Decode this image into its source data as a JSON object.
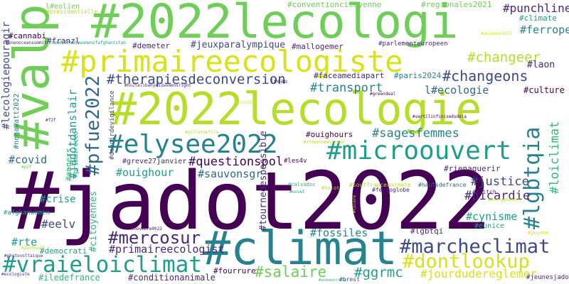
{
  "words": [
    {
      "text": "#2022lecologi",
      "color": "c8"
    },
    {
      "text": "#valp",
      "color": "c8"
    },
    {
      "text": "#primaireecologiste",
      "color": "c10"
    },
    {
      "text": "#2022lecologie",
      "color": "c9"
    },
    {
      "text": "#jadot2022",
      "color": "c1"
    },
    {
      "text": "#climat",
      "color": "c5"
    },
    {
      "text": "#elysee2022",
      "color": "c5"
    },
    {
      "text": "#microouvert",
      "color": "c6"
    },
    {
      "text": "#marcheclimat",
      "color": "c3"
    },
    {
      "text": "#vraieloiclimat",
      "color": "c6"
    },
    {
      "text": "#dontlookup",
      "color": "c10"
    },
    {
      "text": "#lgbtqia",
      "color": "c5"
    },
    {
      "text": "#pfue2022",
      "color": "c4"
    },
    {
      "text": "#mercosur",
      "color": "c2"
    },
    {
      "text": "#changeons",
      "color": "c3"
    },
    {
      "text": "#changeer",
      "color": "c9"
    },
    {
      "text": "#therapiesdeconversion",
      "color": "c3"
    },
    {
      "text": "#transport",
      "color": "c5"
    },
    {
      "text": "#sagesfemmes",
      "color": "c5"
    },
    {
      "text": "#questionspol",
      "color": "c1"
    },
    {
      "text": "#sauvonsgr",
      "color": "c4"
    },
    {
      "text": "#ouighour",
      "color": "c6"
    },
    {
      "text": "#picardie",
      "color": "c2"
    },
    {
      "text": "#justice",
      "color": "c3"
    },
    {
      "text": "#loiclimat",
      "color": "c7"
    },
    {
      "text": "#cynisme",
      "color": "c6"
    },
    {
      "text": "#fossiles",
      "color": "c5"
    },
    {
      "text": "#salaire",
      "color": "c8"
    },
    {
      "text": "#ggrmc",
      "color": "c6"
    },
    {
      "text": "#jourdudereglemer",
      "color": "c10"
    },
    {
      "text": "#primaireecologist",
      "color": "c2"
    },
    {
      "text": "#rte",
      "color": "c6"
    },
    {
      "text": "#eelv",
      "color": "c3"
    },
    {
      "text": "#covid",
      "color": "c4"
    },
    {
      "text": "#crise",
      "color": "c6"
    },
    {
      "text": "#laon",
      "color": "c2"
    },
    {
      "text": "#ferropem",
      "color": "c5"
    },
    {
      "text": "#punchline",
      "color": "c2"
    },
    {
      "text": "l#ecologie",
      "color": "c4"
    },
    {
      "text": "#culture",
      "color": "c1"
    },
    {
      "text": "#lecologiepouragir",
      "color": "c3"
    },
    {
      "text": "#jadotdanslair",
      "color": "c6"
    },
    {
      "text": "#tournedespossible",
      "color": "c2"
    },
    {
      "text": "#conditionanimale",
      "color": "c2"
    },
    {
      "text": "#iledefrance",
      "color": "c7"
    },
    {
      "text": "#democrati",
      "color": "c6"
    },
    {
      "text": "#fourrure",
      "color": "c1"
    },
    {
      "text": "#mallogemer",
      "color": "c2"
    },
    {
      "text": "#jeuxparalympique",
      "color": "c3"
    },
    {
      "text": "#faceamediapart",
      "color": "c2"
    },
    {
      "text": "#cannabi",
      "color": "c1"
    },
    {
      "text": "#franzl",
      "color": "c2"
    },
    {
      "text": "#conventioncitoyenne",
      "color": "c8"
    },
    {
      "text": "#regionales2021",
      "color": "c8"
    },
    {
      "text": "l#eolien",
      "color": "c8"
    },
    {
      "text": "#demeter",
      "color": "c2"
    },
    {
      "text": "#parlementeuropeen",
      "color": "c2"
    },
    {
      "text": "#climate",
      "color": "c6"
    },
    {
      "text": "#greve27janvier",
      "color": "c2"
    },
    {
      "text": "#ouighours",
      "color": "c1"
    },
    {
      "text": "#paris2024",
      "color": "c5"
    },
    {
      "text": "#rienaguerir",
      "color": "c2"
    },
    {
      "text": "#lgbtqi",
      "color": "c2"
    },
    {
      "text": "#eunice",
      "color": "c6"
    },
    {
      "text": "#afghanwomen",
      "color": "c6"
    },
    {
      "text": "#citoyennes",
      "color": "c7"
    },
    {
      "text": "#negawatt2022",
      "color": "c5"
    },
    {
      "text": "#angers",
      "color": "c7"
    },
    {
      "text": "#primaireeco",
      "color": "c6"
    },
    {
      "text": "#les4v",
      "color": "c1"
    },
    {
      "text": "#jeunesjadot",
      "color": "c2"
    },
    {
      "text": "#brest",
      "color": "c3"
    },
    {
      "text": "#twitch",
      "color": "c2"
    },
    {
      "text": "#hautsdefrance",
      "color": "c4"
    },
    {
      "text": "#guyane",
      "color": "c10"
    },
    {
      "text": "#calvados",
      "color": "c7"
    },
    {
      "text": "#ferroglobe",
      "color": "c2"
    },
    {
      "text": "#souffranceanimale",
      "color": "c9"
    },
    {
      "text": "#devoirdevigilance",
      "color": "c3"
    },
    {
      "text": "#presidentielle",
      "color": "c9"
    },
    {
      "text": "#onenoceansummit",
      "color": "c2"
    },
    {
      "text": "#standwiththewomenofafghanistan",
      "color": "c6"
    },
    {
      "text": "#ho2talibanye52womensright",
      "color": "c2"
    },
    {
      "text": "l#eau",
      "color": "c2"
    },
    {
      "text": "#greendeal",
      "color": "c1"
    },
    {
      "text": "#covid19",
      "color": "c10"
    },
    {
      "text": "#f2f",
      "color": "c2"
    },
    {
      "text": "#gilletdefilm",
      "color": "c9"
    },
    {
      "text": "#stopenemercosur",
      "color": "c9"
    },
    {
      "text": "#vertilinfinisedudela",
      "color": "c1"
    },
    {
      "text": "#pdf",
      "color": "c8"
    },
    {
      "text": "#hulot",
      "color": "c9"
    },
    {
      "text": "#colere",
      "color": "c9"
    },
    {
      "text": "#novel",
      "color": "c6"
    },
    {
      "text": "#energymamnet",
      "color": "c9"
    },
    {
      "text": "#inovebre9h22",
      "color": "c1"
    },
    {
      "text": "#ecologiste",
      "color": "c2"
    },
    {
      "text": "#photovoltaique",
      "color": "c2"
    },
    {
      "text": "#andomatrisle",
      "color": "c7"
    },
    {
      "text": "#dontmust",
      "color": "c9"
    },
    {
      "text": "#animaux2022",
      "color": "c10"
    }
  ]
}
